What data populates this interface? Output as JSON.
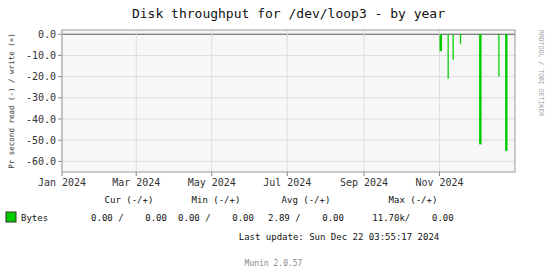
{
  "chart_data": {
    "type": "bar",
    "title": "Disk throughput for /dev/loop3 - by year",
    "y_label": "Pr second read (-) / write (+)",
    "x": [
      1730505600,
      1731024000,
      1731369600,
      1731888000,
      1733270400,
      1734566400,
      1735084800
    ],
    "series": [
      {
        "name": "Bytes",
        "color": "#00cc00",
        "values": [
          -8.0,
          -21.0,
          -12.0,
          -4.5,
          -52.0,
          -20.0,
          -55.0
        ],
        "widths": [
          172800,
          86400,
          86400,
          86400,
          172800,
          86400,
          172800
        ]
      }
    ],
    "xlim": [
      1704067200,
      1735689600
    ],
    "xticks": [
      {
        "value": 1704067200,
        "label": "Jan 2024"
      },
      {
        "value": 1709251200,
        "label": "Mar 2024"
      },
      {
        "value": 1714521600,
        "label": "May 2024"
      },
      {
        "value": 1719792000,
        "label": "Jul 2024"
      },
      {
        "value": 1725148800,
        "label": "Sep 2024"
      },
      {
        "value": 1730419200,
        "label": "Nov 2024"
      }
    ],
    "ylim": [
      -65,
      2
    ],
    "yticks": [
      {
        "value": 0.0,
        "label": "0.0"
      },
      {
        "value": -10.0,
        "label": "-10.0"
      },
      {
        "value": -20.0,
        "label": "-20.0"
      },
      {
        "value": -30.0,
        "label": "-30.0"
      },
      {
        "value": -40.0,
        "label": "-40.0"
      },
      {
        "value": -50.0,
        "label": "-50.0"
      },
      {
        "value": -60.0,
        "label": "-60.0"
      }
    ],
    "grid": true,
    "legend": "lower left",
    "annotations": [
      "RRDTOOL / TOBI OETIKER",
      "Cur (-/+)",
      "Min (-/+)",
      "Avg (-/+)",
      "Max (-/+)",
      "0.00 /    0.00",
      "0.00 /    0.00",
      "2.89 /    0.00",
      "11.70k/    0.00",
      "Last update: Sun Dec 22 03:55:17 2024",
      "Munin 2.0.57"
    ]
  }
}
